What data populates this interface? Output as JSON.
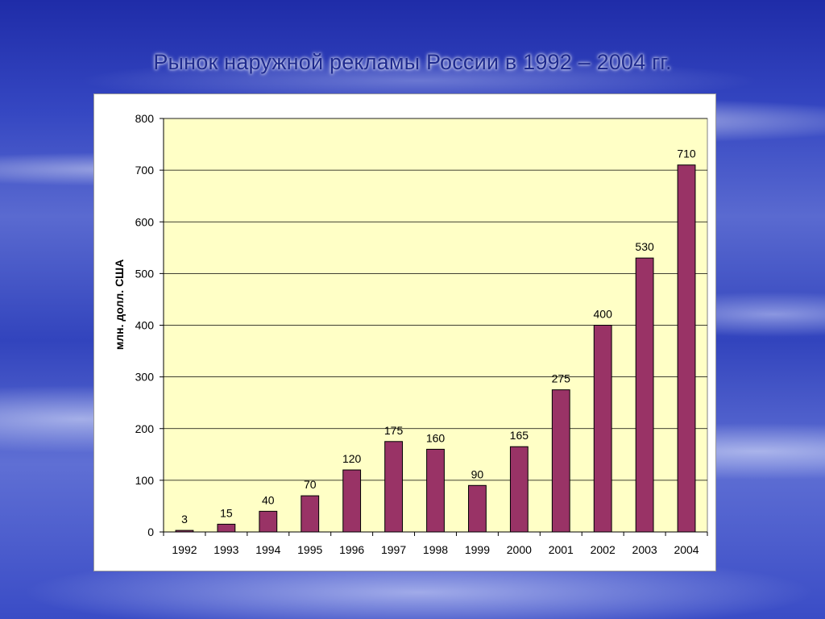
{
  "title": "Рынок наружной рекламы  России в 1992 – 2004 гг.",
  "colors": {
    "plot_background": "#ffffc6",
    "bar_fill": "#993366",
    "gridline": "#000000",
    "title_text": "#1e2a8f"
  },
  "chart_data": {
    "type": "bar",
    "categories": [
      "1992",
      "1993",
      "1994",
      "1995",
      "1996",
      "1997",
      "1998",
      "1999",
      "2000",
      "2001",
      "2002",
      "2003",
      "2004"
    ],
    "values": [
      3,
      15,
      40,
      70,
      120,
      175,
      160,
      90,
      165,
      275,
      400,
      530,
      710
    ],
    "xlabel": "",
    "ylabel": "млн. долл. США",
    "ylim": [
      0,
      800
    ],
    "yticks": [
      0,
      100,
      200,
      300,
      400,
      500,
      600,
      700,
      800
    ],
    "grid": true,
    "legend": "none",
    "data_labels": true
  }
}
